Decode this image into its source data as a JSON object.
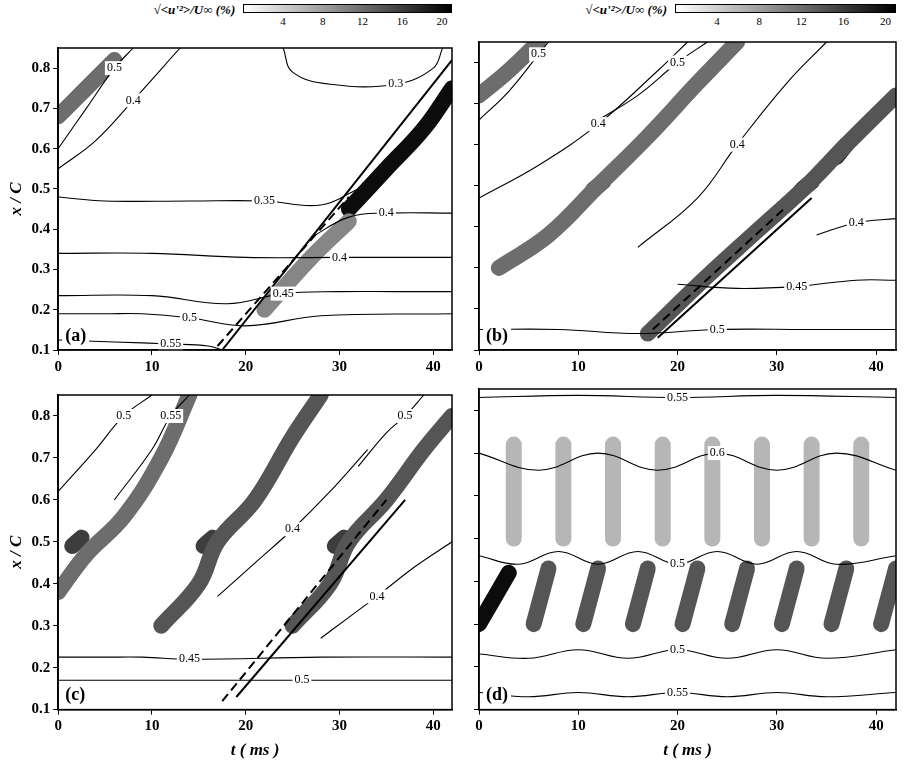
{
  "chart_data": [
    {
      "type": "contour",
      "label": "(a)",
      "ylabel": "x / C",
      "xlim": [
        0,
        42
      ],
      "ylim": [
        0.1,
        0.85
      ],
      "xticks": [
        0,
        10,
        20,
        30,
        40
      ],
      "yticks": [
        0.1,
        0.2,
        0.3,
        0.4,
        0.5,
        0.6,
        0.7,
        0.8
      ],
      "colorbar": {
        "label": "√<u'²>/U∞ (%)",
        "range": [
          0,
          21
        ],
        "ticks": [
          4,
          8,
          12,
          16,
          20
        ]
      },
      "streaks": [
        {
          "intensity": 12,
          "x": [
            0,
            3,
            6
          ],
          "y": [
            0.68,
            0.75,
            0.82
          ]
        },
        {
          "intensity": 10,
          "x": [
            22,
            27,
            31
          ],
          "y": [
            0.2,
            0.33,
            0.42
          ]
        },
        {
          "intensity": 20,
          "x": [
            31,
            35,
            39,
            42
          ],
          "y": [
            0.45,
            0.55,
            0.65,
            0.75
          ]
        }
      ],
      "contours": [
        {
          "level": 0.55,
          "x": [
            0,
            6,
            12,
            16,
            17.5
          ],
          "y": [
            0.125,
            0.12,
            0.115,
            0.11,
            0.1
          ]
        },
        {
          "level": 0.5,
          "x": [
            0,
            5,
            9,
            14,
            20,
            28,
            42
          ],
          "y": [
            0.19,
            0.19,
            0.19,
            0.18,
            0.16,
            0.185,
            0.19
          ]
        },
        {
          "level": 0.45,
          "x": [
            0,
            10,
            18,
            24,
            30,
            36,
            42
          ],
          "y": [
            0.235,
            0.235,
            0.215,
            0.24,
            0.245,
            0.245,
            0.245
          ]
        },
        {
          "level": 0.4,
          "x": [
            0,
            10,
            20,
            30,
            35,
            38,
            42
          ],
          "y": [
            0.34,
            0.34,
            0.33,
            0.33,
            0.33,
            0.33,
            0.33
          ]
        },
        {
          "level": 0.35,
          "x": [
            0,
            5,
            14,
            22,
            28,
            32
          ],
          "y": [
            0.48,
            0.47,
            0.47,
            0.47,
            0.46,
            0.5
          ]
        },
        {
          "level": 0.4,
          "x": [
            27,
            31,
            35,
            42
          ],
          "y": [
            0.38,
            0.43,
            0.44,
            0.44
          ]
        },
        {
          "level": 0.3,
          "x": [
            24,
            25,
            29,
            36,
            40,
            41
          ],
          "y": [
            0.85,
            0.79,
            0.76,
            0.76,
            0.8,
            0.85
          ]
        },
        {
          "level": 0.4,
          "x": [
            0,
            4,
            8,
            13
          ],
          "y": [
            0.55,
            0.62,
            0.72,
            0.85
          ]
        },
        {
          "level": 0.5,
          "x": [
            0,
            3,
            6,
            8
          ],
          "y": [
            0.6,
            0.7,
            0.8,
            0.85
          ]
        }
      ],
      "trajectories": [
        {
          "line_style": "solid",
          "x": [
            17.5,
            42
          ],
          "y": [
            0.1,
            0.82
          ]
        },
        {
          "line_style": "dashed",
          "x": [
            17,
            31
          ],
          "y": [
            0.11,
            0.48
          ]
        }
      ]
    },
    {
      "type": "contour",
      "label": "(b)",
      "tick_labels": "x",
      "xlim": [
        0,
        42
      ],
      "ylim": [
        0.1,
        0.85
      ],
      "xticks": [
        0,
        10,
        20,
        30,
        40
      ],
      "yticks": [
        0.1,
        0.2,
        0.3,
        0.4,
        0.5,
        0.6,
        0.7,
        0.8
      ],
      "colorbar": {
        "label": "√<u'²>/U∞ (%)",
        "range": [
          0,
          21
        ],
        "ticks": [
          4,
          8,
          12,
          16,
          20
        ]
      },
      "streaks": [
        {
          "intensity": 12,
          "x": [
            0,
            3,
            6
          ],
          "y": [
            0.72,
            0.78,
            0.85
          ]
        },
        {
          "intensity": 12,
          "x": [
            2,
            7,
            12,
            17,
            22,
            26
          ],
          "y": [
            0.3,
            0.38,
            0.5,
            0.62,
            0.75,
            0.85
          ]
        },
        {
          "intensity": 14,
          "x": [
            17,
            23,
            28,
            33,
            37,
            42
          ],
          "y": [
            0.14,
            0.28,
            0.39,
            0.5,
            0.6,
            0.72
          ]
        },
        {
          "intensity": 18,
          "x": [
            11.5,
            12.5
          ],
          "y": [
            0.49,
            0.51
          ]
        },
        {
          "intensity": 20,
          "x": [
            32.5,
            33.5
          ],
          "y": [
            0.49,
            0.51
          ]
        },
        {
          "intensity": 18,
          "x": [
            36,
            37
          ],
          "y": [
            0.57,
            0.6
          ]
        }
      ],
      "contours": [
        {
          "level": 0.5,
          "x": [
            0,
            8,
            16,
            24,
            33,
            38,
            42
          ],
          "y": [
            0.15,
            0.15,
            0.14,
            0.15,
            0.15,
            0.15,
            0.15
          ]
        },
        {
          "level": 0.45,
          "x": [
            20,
            26,
            32,
            38,
            42
          ],
          "y": [
            0.26,
            0.25,
            0.255,
            0.27,
            0.27
          ]
        },
        {
          "level": 0.4,
          "x": [
            0,
            6,
            12,
            18,
            21
          ],
          "y": [
            0.47,
            0.55,
            0.65,
            0.78,
            0.85
          ]
        },
        {
          "level": 0.4,
          "x": [
            16,
            22,
            26,
            31,
            35
          ],
          "y": [
            0.35,
            0.47,
            0.6,
            0.75,
            0.85
          ]
        },
        {
          "level": 0.4,
          "x": [
            34,
            38,
            42
          ],
          "y": [
            0.38,
            0.41,
            0.42
          ]
        },
        {
          "level": 0.5,
          "x": [
            0,
            3,
            6,
            7
          ],
          "y": [
            0.66,
            0.73,
            0.82,
            0.85
          ]
        },
        {
          "level": 0.5,
          "x": [
            12,
            16,
            20,
            23
          ],
          "y": [
            0.66,
            0.72,
            0.8,
            0.85
          ]
        }
      ],
      "trajectories": [
        {
          "line_style": "solid",
          "x": [
            18,
            33.5
          ],
          "y": [
            0.13,
            0.47
          ]
        },
        {
          "line_style": "dashed",
          "x": [
            17.5,
            31
          ],
          "y": [
            0.15,
            0.45
          ]
        }
      ]
    },
    {
      "type": "contour",
      "label": "(c)",
      "ylabel": "x / C",
      "xlabel": "t ( ms )",
      "xlim": [
        0,
        42
      ],
      "ylim": [
        0.1,
        0.85
      ],
      "xticks": [
        0,
        10,
        20,
        30,
        40
      ],
      "yticks": [
        0.1,
        0.2,
        0.3,
        0.4,
        0.5,
        0.6,
        0.7,
        0.8
      ],
      "streaks": [
        {
          "intensity": 12,
          "x": [
            0,
            3,
            7,
            11,
            14
          ],
          "y": [
            0.38,
            0.47,
            0.56,
            0.7,
            0.85
          ]
        },
        {
          "intensity": 14,
          "x": [
            11,
            15,
            17,
            21,
            25,
            28
          ],
          "y": [
            0.3,
            0.4,
            0.5,
            0.6,
            0.75,
            0.85
          ]
        },
        {
          "intensity": 14,
          "x": [
            25,
            29,
            31,
            35,
            39,
            42
          ],
          "y": [
            0.3,
            0.4,
            0.5,
            0.6,
            0.72,
            0.8
          ]
        },
        {
          "intensity": 16,
          "x": [
            1.5,
            2.5
          ],
          "y": [
            0.49,
            0.51
          ]
        },
        {
          "intensity": 16,
          "x": [
            15.5,
            16.5
          ],
          "y": [
            0.49,
            0.51
          ]
        },
        {
          "intensity": 16,
          "x": [
            29.5,
            30.5
          ],
          "y": [
            0.49,
            0.51
          ]
        }
      ],
      "contours": [
        {
          "level": 0.5,
          "x": [
            0,
            6,
            12,
            26,
            34,
            42
          ],
          "y": [
            0.17,
            0.17,
            0.17,
            0.17,
            0.17,
            0.17
          ]
        },
        {
          "level": 0.45,
          "x": [
            0,
            5,
            9,
            14,
            28,
            42
          ],
          "y": [
            0.225,
            0.225,
            0.225,
            0.22,
            0.225,
            0.225
          ]
        },
        {
          "level": 0.5,
          "x": [
            0,
            4,
            7,
            10
          ],
          "y": [
            0.62,
            0.72,
            0.8,
            0.85
          ]
        },
        {
          "level": 0.55,
          "x": [
            6,
            10,
            12,
            14
          ],
          "y": [
            0.6,
            0.72,
            0.8,
            0.85
          ]
        },
        {
          "level": 0.4,
          "x": [
            17,
            21,
            25,
            29,
            33
          ],
          "y": [
            0.37,
            0.45,
            0.53,
            0.62,
            0.72
          ]
        },
        {
          "level": 0.4,
          "x": [
            28,
            31,
            34,
            38,
            42
          ],
          "y": [
            0.27,
            0.32,
            0.37,
            0.44,
            0.5
          ]
        },
        {
          "level": 0.5,
          "x": [
            32,
            35,
            37,
            39
          ],
          "y": [
            0.68,
            0.76,
            0.8,
            0.85
          ]
        }
      ],
      "trajectories": [
        {
          "line_style": "solid",
          "x": [
            19,
            37
          ],
          "y": [
            0.13,
            0.6
          ]
        },
        {
          "line_style": "dashed",
          "x": [
            17.5,
            35
          ],
          "y": [
            0.12,
            0.6
          ]
        }
      ]
    },
    {
      "type": "contour",
      "label": "(d)",
      "xlabel": "t ( ms )",
      "tick_labels": "x",
      "xlim": [
        0,
        42
      ],
      "ylim": [
        0.1,
        0.85
      ],
      "xticks": [
        0,
        10,
        20,
        30,
        40
      ],
      "yticks": [
        0.1,
        0.2,
        0.3,
        0.4,
        0.5,
        0.6,
        0.7,
        0.8
      ],
      "streaks": [
        {
          "intensity": 20,
          "x": [
            0,
            3
          ],
          "y": [
            0.3,
            0.42
          ]
        },
        {
          "intensity": 14,
          "x": [
            5.5,
            7
          ],
          "y": [
            0.3,
            0.43
          ]
        },
        {
          "intensity": 14,
          "x": [
            10.5,
            12
          ],
          "y": [
            0.3,
            0.43
          ]
        },
        {
          "intensity": 14,
          "x": [
            15.5,
            17
          ],
          "y": [
            0.3,
            0.43
          ]
        },
        {
          "intensity": 14,
          "x": [
            20.5,
            22
          ],
          "y": [
            0.3,
            0.43
          ]
        },
        {
          "intensity": 14,
          "x": [
            25.5,
            27
          ],
          "y": [
            0.3,
            0.43
          ]
        },
        {
          "intensity": 14,
          "x": [
            30.5,
            32
          ],
          "y": [
            0.3,
            0.43
          ]
        },
        {
          "intensity": 14,
          "x": [
            35.5,
            37
          ],
          "y": [
            0.3,
            0.43
          ]
        },
        {
          "intensity": 14,
          "x": [
            40.5,
            42
          ],
          "y": [
            0.3,
            0.43
          ]
        },
        {
          "intensity": 6,
          "x": [
            3.5,
            3.5
          ],
          "y": [
            0.5,
            0.72
          ]
        },
        {
          "intensity": 6,
          "x": [
            8.5,
            8.5
          ],
          "y": [
            0.5,
            0.72
          ]
        },
        {
          "intensity": 6,
          "x": [
            13.5,
            13.5
          ],
          "y": [
            0.5,
            0.72
          ]
        },
        {
          "intensity": 6,
          "x": [
            18.5,
            18.5
          ],
          "y": [
            0.5,
            0.72
          ]
        },
        {
          "intensity": 6,
          "x": [
            23.5,
            23.5
          ],
          "y": [
            0.5,
            0.72
          ]
        },
        {
          "intensity": 6,
          "x": [
            28.5,
            28.5
          ],
          "y": [
            0.5,
            0.72
          ]
        },
        {
          "intensity": 6,
          "x": [
            33.5,
            33.5
          ],
          "y": [
            0.5,
            0.72
          ]
        },
        {
          "intensity": 6,
          "x": [
            38.5,
            38.5
          ],
          "y": [
            0.5,
            0.72
          ]
        }
      ],
      "contours": [
        {
          "level": 0.55,
          "x": [
            0,
            10,
            20,
            30,
            42
          ],
          "y": [
            0.83,
            0.835,
            0.83,
            0.835,
            0.83
          ]
        },
        {
          "level": 0.6,
          "x": [
            0,
            6,
            12,
            18,
            24,
            30,
            36,
            42
          ],
          "y": [
            0.7,
            0.66,
            0.7,
            0.66,
            0.7,
            0.66,
            0.7,
            0.66
          ]
        },
        {
          "level": 0.5,
          "x": [
            0,
            4,
            8,
            12,
            16,
            20,
            24,
            28,
            32,
            36,
            42
          ],
          "y": [
            0.46,
            0.44,
            0.47,
            0.44,
            0.47,
            0.44,
            0.47,
            0.44,
            0.47,
            0.44,
            0.46
          ]
        },
        {
          "level": 0.5,
          "x": [
            0,
            5,
            10,
            15,
            20,
            25,
            30,
            35,
            42
          ],
          "y": [
            0.23,
            0.22,
            0.24,
            0.22,
            0.24,
            0.22,
            0.24,
            0.22,
            0.24
          ]
        },
        {
          "level": 0.55,
          "x": [
            0,
            5,
            10,
            15,
            20,
            25,
            30,
            35,
            42
          ],
          "y": [
            0.14,
            0.13,
            0.14,
            0.13,
            0.14,
            0.13,
            0.14,
            0.13,
            0.14
          ]
        }
      ],
      "trajectories": []
    }
  ]
}
